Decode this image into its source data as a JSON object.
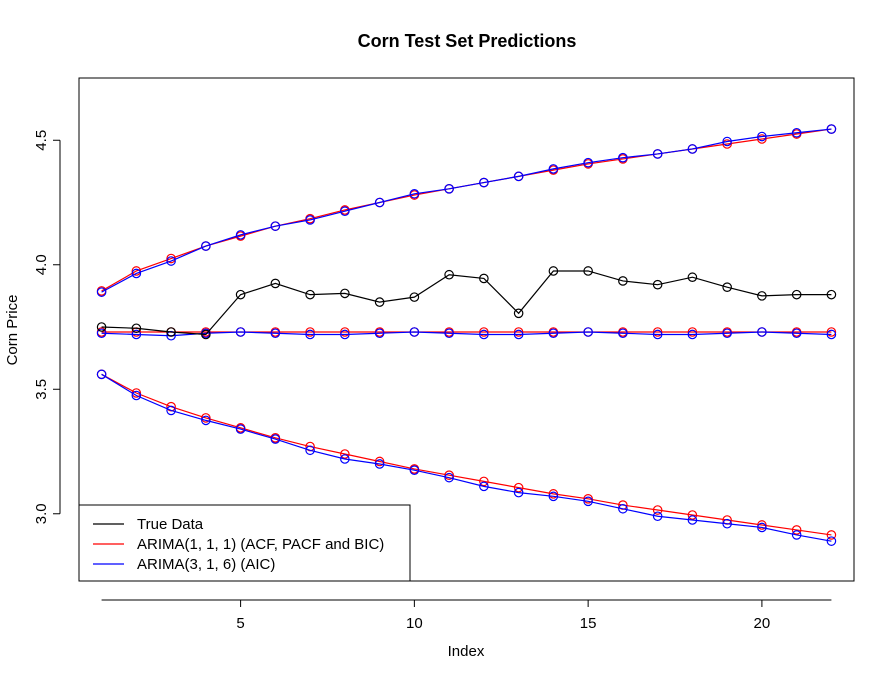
{
  "chart_data": {
    "type": "line",
    "title": "Corn Test Set Predictions",
    "xlabel": "Index",
    "ylabel": "Corn Price",
    "xlim": [
      0.35,
      22.65
    ],
    "ylim": [
      2.73,
      4.75
    ],
    "xticks": [
      5,
      10,
      15,
      20
    ],
    "yticks": [
      3.0,
      3.5,
      4.0,
      4.5
    ],
    "xtick_labels": [
      "5",
      "10",
      "15",
      "20"
    ],
    "ytick_labels": [
      "3.0",
      "3.5",
      "4.0",
      "4.5"
    ],
    "x": [
      1,
      2,
      3,
      4,
      5,
      6,
      7,
      8,
      9,
      10,
      11,
      12,
      13,
      14,
      15,
      16,
      17,
      18,
      19,
      20,
      21,
      22
    ],
    "legend_position": "bottom-left",
    "series": [
      {
        "name": "True Data",
        "color": "#000000",
        "values": [
          3.75,
          3.745,
          3.73,
          3.72,
          3.88,
          3.925,
          3.88,
          3.885,
          3.85,
          3.87,
          3.96,
          3.945,
          3.805,
          3.975,
          3.975,
          3.935,
          3.92,
          3.95,
          3.91,
          3.875,
          3.88,
          3.88
        ]
      },
      {
        "name": "ARIMA(1, 1, 1) (ACF, PACF and BIC)",
        "color": "#ff0000",
        "values": [
          3.73,
          3.73,
          3.73,
          3.73,
          3.73,
          3.73,
          3.73,
          3.73,
          3.73,
          3.73,
          3.73,
          3.73,
          3.73,
          3.73,
          3.73,
          3.73,
          3.73,
          3.73,
          3.73,
          3.73,
          3.73,
          3.73
        ],
        "upper": [
          3.895,
          3.975,
          4.025,
          4.075,
          4.115,
          4.155,
          4.185,
          4.22,
          4.25,
          4.28,
          4.305,
          4.33,
          4.355,
          4.38,
          4.405,
          4.425,
          4.445,
          4.465,
          4.485,
          4.505,
          4.525,
          4.545
        ],
        "lower": [
          3.56,
          3.485,
          3.43,
          3.385,
          3.345,
          3.305,
          3.27,
          3.24,
          3.21,
          3.18,
          3.155,
          3.13,
          3.105,
          3.08,
          3.06,
          3.035,
          3.015,
          2.995,
          2.975,
          2.955,
          2.935,
          2.915
        ]
      },
      {
        "name": "ARIMA(3, 1, 6) (AIC)",
        "color": "#0000ff",
        "values": [
          3.725,
          3.72,
          3.715,
          3.725,
          3.73,
          3.725,
          3.72,
          3.72,
          3.725,
          3.73,
          3.725,
          3.72,
          3.72,
          3.725,
          3.73,
          3.725,
          3.72,
          3.72,
          3.725,
          3.73,
          3.725,
          3.72
        ],
        "upper": [
          3.89,
          3.965,
          4.015,
          4.075,
          4.12,
          4.155,
          4.18,
          4.215,
          4.25,
          4.285,
          4.305,
          4.33,
          4.355,
          4.385,
          4.41,
          4.43,
          4.445,
          4.465,
          4.495,
          4.515,
          4.53,
          4.545
        ],
        "lower": [
          3.56,
          3.475,
          3.415,
          3.375,
          3.34,
          3.3,
          3.255,
          3.22,
          3.2,
          3.175,
          3.145,
          3.11,
          3.085,
          3.07,
          3.05,
          3.02,
          2.99,
          2.975,
          2.96,
          2.945,
          2.915,
          2.89
        ]
      }
    ]
  }
}
